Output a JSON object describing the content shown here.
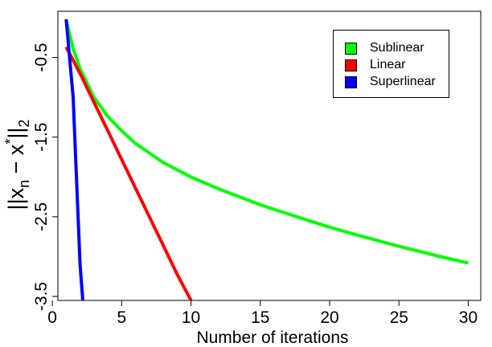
{
  "chart_data": {
    "type": "line",
    "title": "",
    "xlabel": "Number of iterations",
    "xlim": [
      0.4,
      30.9
    ],
    "ylim": [
      -3.55,
      0.08
    ],
    "xticks": [
      0,
      5,
      10,
      15,
      20,
      25,
      30
    ],
    "xtick_labels": [
      "0",
      "5",
      "10",
      "15",
      "20",
      "25",
      "30"
    ],
    "yticks": [
      -0.5,
      -1.5,
      -2.5,
      -3.5
    ],
    "ytick_labels": [
      "-0.5",
      "-1.5",
      "-2.5",
      "-3.5"
    ],
    "grid": false,
    "legend_position": "top-right",
    "series": [
      {
        "name": "Sublinear",
        "color": "#00ff00",
        "x": [
          1,
          1.5,
          2,
          3,
          4,
          5,
          6,
          8,
          10,
          12,
          15,
          18,
          20,
          22,
          25,
          28,
          30
        ],
        "y": [
          -0.03,
          -0.39,
          -0.64,
          -1.0,
          -1.24,
          -1.42,
          -1.58,
          -1.82,
          -2.0,
          -2.15,
          -2.35,
          -2.52,
          -2.63,
          -2.73,
          -2.87,
          -3.0,
          -3.08
        ]
      },
      {
        "name": "Linear",
        "color": "#ff0000",
        "x": [
          1,
          2,
          3,
          4,
          5,
          6,
          7,
          8,
          9,
          10
        ],
        "y": [
          -0.37,
          -0.7,
          -1.06,
          -1.42,
          -1.78,
          -2.14,
          -2.5,
          -2.86,
          -3.22,
          -3.55
        ]
      },
      {
        "name": "Superlinear",
        "color": "#0000ff",
        "x": [
          1,
          1.5,
          2,
          2.2
        ],
        "y": [
          -0.02,
          -1.0,
          -3.1,
          -3.55
        ]
      }
    ]
  },
  "legend": {
    "items": [
      {
        "label": "Sublinear",
        "color": "#00ff00"
      },
      {
        "label": "Linear",
        "color": "#ff0000"
      },
      {
        "label": "Superlinear",
        "color": "#0000ff"
      }
    ]
  }
}
